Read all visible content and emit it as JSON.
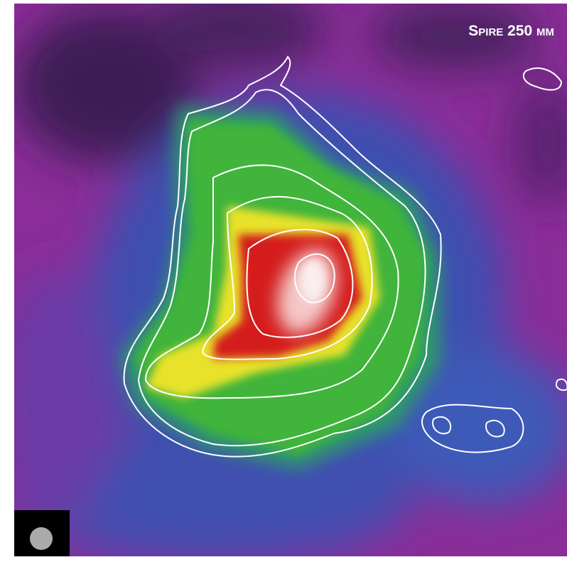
{
  "image": {
    "label": "Spire 250 µm"
  }
}
